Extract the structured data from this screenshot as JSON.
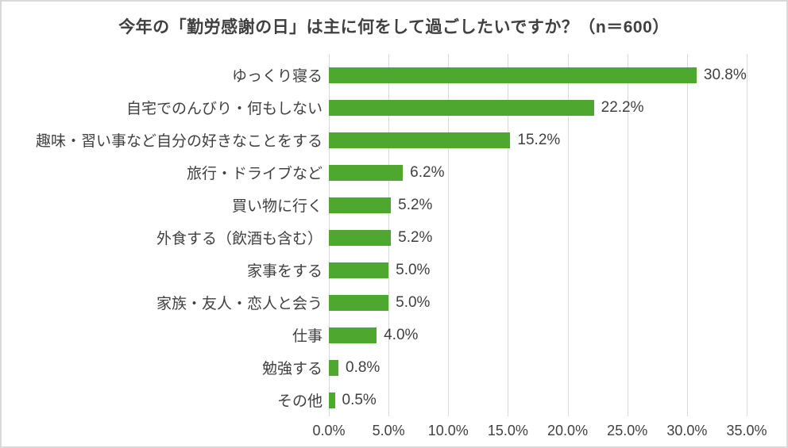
{
  "colors": {
    "bar": "#4EA72E",
    "gridline": "#D9D9D9",
    "frame_border": "#D9D9D9",
    "text": "#404040",
    "background": "#FFFFFF"
  },
  "chart_data": {
    "type": "bar",
    "orientation": "horizontal",
    "title": "今年の「勤労感謝の日」は主に何をして過ごしたいですか？（n＝600）",
    "xlabel": "",
    "ylabel": "",
    "categories": [
      "ゆっくり寝る",
      "自宅でのんびり・何もしない",
      "趣味・習い事など自分の好きなことをする",
      "旅行・ドライブなど",
      "買い物に行く",
      "外食する（飲酒も含む）",
      "家事をする",
      "家族・友人・恋人と会う",
      "仕事",
      "勉強する",
      "その他"
    ],
    "values": [
      30.8,
      22.2,
      15.2,
      6.2,
      5.2,
      5.2,
      5.0,
      5.0,
      4.0,
      0.8,
      0.5
    ],
    "value_labels": [
      "30.8%",
      "22.2%",
      "15.2%",
      "6.2%",
      "5.2%",
      "5.2%",
      "5.0%",
      "5.0%",
      "4.0%",
      "0.8%",
      "0.5%"
    ],
    "xlim": [
      0,
      35
    ],
    "x_ticks": [
      "0.0%",
      "5.0%",
      "10.0%",
      "15.0%",
      "20.0%",
      "25.0%",
      "30.0%",
      "35.0%"
    ],
    "grid": "vertical-on",
    "legend": "none"
  }
}
